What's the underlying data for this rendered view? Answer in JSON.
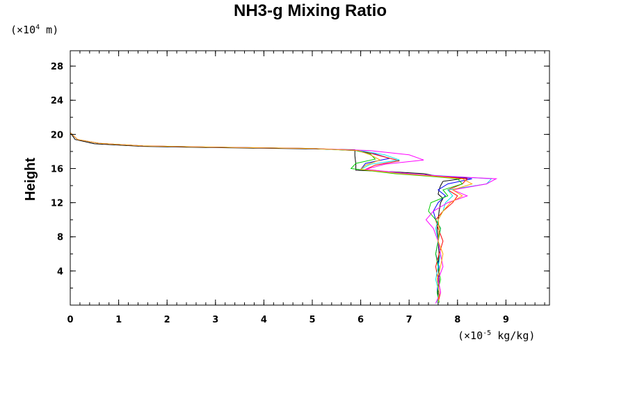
{
  "chart_data": {
    "type": "line",
    "title": "NH3-g Mixing Ratio",
    "ylabel": "Height",
    "y_unit": {
      "prefix": "(×10",
      "exp": "4",
      "suffix": " m)"
    },
    "x_unit": {
      "prefix": "(×10",
      "exp": "-5",
      "suffix": " kg/kg)"
    },
    "xlim": [
      0,
      9.9
    ],
    "ylim": [
      0,
      29.8
    ],
    "xticks": [
      "0",
      "1",
      "2",
      "3",
      "4",
      "5",
      "6",
      "7",
      "8",
      "9"
    ],
    "yticks": [
      "4",
      "8",
      "12",
      "16",
      "20",
      "24",
      "28"
    ],
    "grid": false,
    "series": [
      {
        "color": "#000000",
        "x": [
          7.6,
          7.6,
          7.62,
          7.6,
          7.62,
          7.6,
          7.58,
          7.6,
          7.62,
          7.65,
          7.7,
          7.6,
          7.62,
          7.65,
          7.7,
          8.2,
          7.6,
          7.3,
          6.7,
          5.9,
          5.9,
          5.88,
          5.88,
          5.0,
          3.0,
          1.5,
          0.5,
          0.1,
          0.0,
          0.0
        ],
        "y": [
          0.2,
          1.5,
          3,
          4.5,
          6,
          7.5,
          9,
          10,
          11,
          12,
          12.5,
          13,
          13.5,
          14,
          14.5,
          14.9,
          15.1,
          15.4,
          15.6,
          15.8,
          16.5,
          17.5,
          18.2,
          18.3,
          18.45,
          18.6,
          18.9,
          19.4,
          20.2,
          29.8
        ]
      },
      {
        "color": "#0000ff",
        "x": [
          7.62,
          7.58,
          7.6,
          7.62,
          7.55,
          7.6,
          7.65,
          7.55,
          7.5,
          7.6,
          7.75,
          7.6,
          7.8,
          8.3,
          7.7,
          6.9,
          6.0,
          6.1,
          6.6,
          6.3,
          5.9,
          5.0,
          3.0,
          1.5,
          0.6,
          0.15,
          0.0,
          0.0
        ],
        "y": [
          0.3,
          1.5,
          3,
          4.5,
          6,
          7.5,
          9,
          10,
          11,
          12,
          12.8,
          13.5,
          14.2,
          14.8,
          15.1,
          15.4,
          15.9,
          16.6,
          17.2,
          17.7,
          18.1,
          18.35,
          18.5,
          18.65,
          18.95,
          19.4,
          20.2,
          29.8
        ]
      },
      {
        "color": "#ff0000",
        "x": [
          7.6,
          7.65,
          7.6,
          7.55,
          7.62,
          7.7,
          7.6,
          7.55,
          7.7,
          7.9,
          8.0,
          7.8,
          8.1,
          8.2,
          7.6,
          6.9,
          6.1,
          6.3,
          6.8,
          6.4,
          6.0,
          5.0,
          3.0,
          1.5,
          0.6,
          0.15,
          0.0,
          0.0
        ],
        "y": [
          0.3,
          1.5,
          3,
          4.5,
          6,
          7.5,
          9,
          10,
          11,
          12,
          12.8,
          13.5,
          14.2,
          14.8,
          15.1,
          15.4,
          15.9,
          16.4,
          16.9,
          17.5,
          18.1,
          18.35,
          18.5,
          18.65,
          18.95,
          19.4,
          20.2,
          29.8
        ]
      },
      {
        "color": "#00cc00",
        "x": [
          7.62,
          7.58,
          7.65,
          7.6,
          7.55,
          7.6,
          7.65,
          7.55,
          7.4,
          7.45,
          7.8,
          7.7,
          8.1,
          8.0,
          7.4,
          6.7,
          5.8,
          5.9,
          6.3,
          6.2,
          5.9,
          5.0,
          3.0,
          1.5,
          0.6,
          0.15,
          0.0,
          0.0
        ],
        "y": [
          0.3,
          1.5,
          3,
          4.5,
          6,
          7.5,
          9,
          10,
          11,
          12,
          12.8,
          13.5,
          14.2,
          14.8,
          15.1,
          15.4,
          16.0,
          16.6,
          17.1,
          17.7,
          18.1,
          18.35,
          18.5,
          18.65,
          18.95,
          19.4,
          20.2,
          29.8
        ]
      },
      {
        "color": "#00e5e5",
        "x": [
          7.58,
          7.62,
          7.55,
          7.6,
          7.65,
          7.6,
          7.55,
          7.6,
          7.7,
          7.75,
          7.9,
          7.8,
          8.6,
          8.7,
          7.8,
          6.9,
          6.0,
          6.2,
          6.8,
          6.5,
          6.0,
          5.0,
          3.0,
          1.5,
          0.6,
          0.15,
          0.0,
          0.0
        ],
        "y": [
          0.3,
          1.5,
          3,
          4.5,
          6,
          7.5,
          9,
          10,
          11,
          12,
          12.8,
          13.5,
          14.2,
          14.8,
          15.1,
          15.4,
          15.9,
          16.5,
          17.0,
          17.6,
          18.1,
          18.35,
          18.5,
          18.65,
          18.95,
          19.4,
          20.2,
          29.8
        ]
      },
      {
        "color": "#ff00ff",
        "x": [
          7.55,
          7.65,
          7.6,
          7.7,
          7.65,
          7.6,
          7.5,
          7.35,
          7.5,
          7.8,
          8.2,
          7.9,
          8.6,
          8.8,
          7.7,
          7.0,
          6.1,
          6.5,
          7.3,
          7.0,
          6.2,
          5.0,
          3.0,
          1.5,
          0.6,
          0.15,
          0.0,
          0.0
        ],
        "y": [
          0.2,
          1.5,
          3,
          4.5,
          6,
          7.5,
          9,
          10,
          11,
          12,
          12.8,
          13.5,
          14.2,
          14.8,
          15.1,
          15.4,
          15.9,
          16.5,
          17.0,
          17.6,
          18.1,
          18.35,
          18.5,
          18.65,
          18.95,
          19.4,
          20.2,
          29.8
        ]
      },
      {
        "color": "#ffa500",
        "x": [
          7.6,
          7.62,
          7.58,
          7.65,
          7.7,
          7.6,
          7.62,
          7.6,
          7.7,
          7.85,
          8.1,
          7.9,
          8.3,
          8.1,
          7.5,
          6.8,
          6.0,
          6.1,
          6.4,
          6.2,
          5.95,
          5.0,
          3.0,
          1.5,
          0.6,
          0.15,
          0.0,
          0.0
        ],
        "y": [
          0.3,
          1.5,
          3,
          4.5,
          6,
          7.5,
          9,
          10,
          11,
          12,
          12.8,
          13.5,
          14.2,
          14.8,
          15.1,
          15.4,
          15.9,
          16.4,
          17.0,
          17.6,
          18.1,
          18.35,
          18.5,
          18.65,
          18.95,
          19.4,
          20.2,
          29.8
        ]
      }
    ]
  }
}
